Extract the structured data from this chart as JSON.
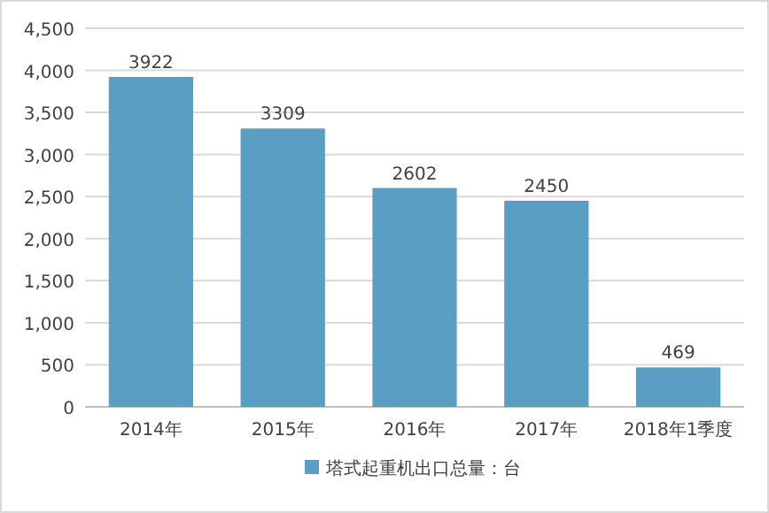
{
  "chart_data": {
    "type": "bar",
    "categories": [
      "2014年",
      "2015年",
      "2016年",
      "2017年",
      "2018年1季度"
    ],
    "series": [
      {
        "name": "塔式起重机出口总量：台",
        "color": "#5a9ec4",
        "values": [
          3922,
          3309,
          2602,
          2450,
          469
        ]
      }
    ],
    "ylim": [
      0,
      4500
    ],
    "yticks": [
      0,
      500,
      {
        "value": 1000,
        "label": "1,000"
      },
      {
        "value": 1500,
        "label": "1,500"
      },
      {
        "value": 2000,
        "label": "2,000"
      },
      {
        "value": 2500,
        "label": "2,500"
      },
      {
        "value": 3000,
        "label": "3,000"
      },
      {
        "value": 3500,
        "label": "3,500"
      },
      {
        "value": 4000,
        "label": "4,000"
      },
      {
        "value": 4500,
        "label": "4,500"
      }
    ],
    "grid": "y",
    "legend": "bottom",
    "data_labels": true
  }
}
